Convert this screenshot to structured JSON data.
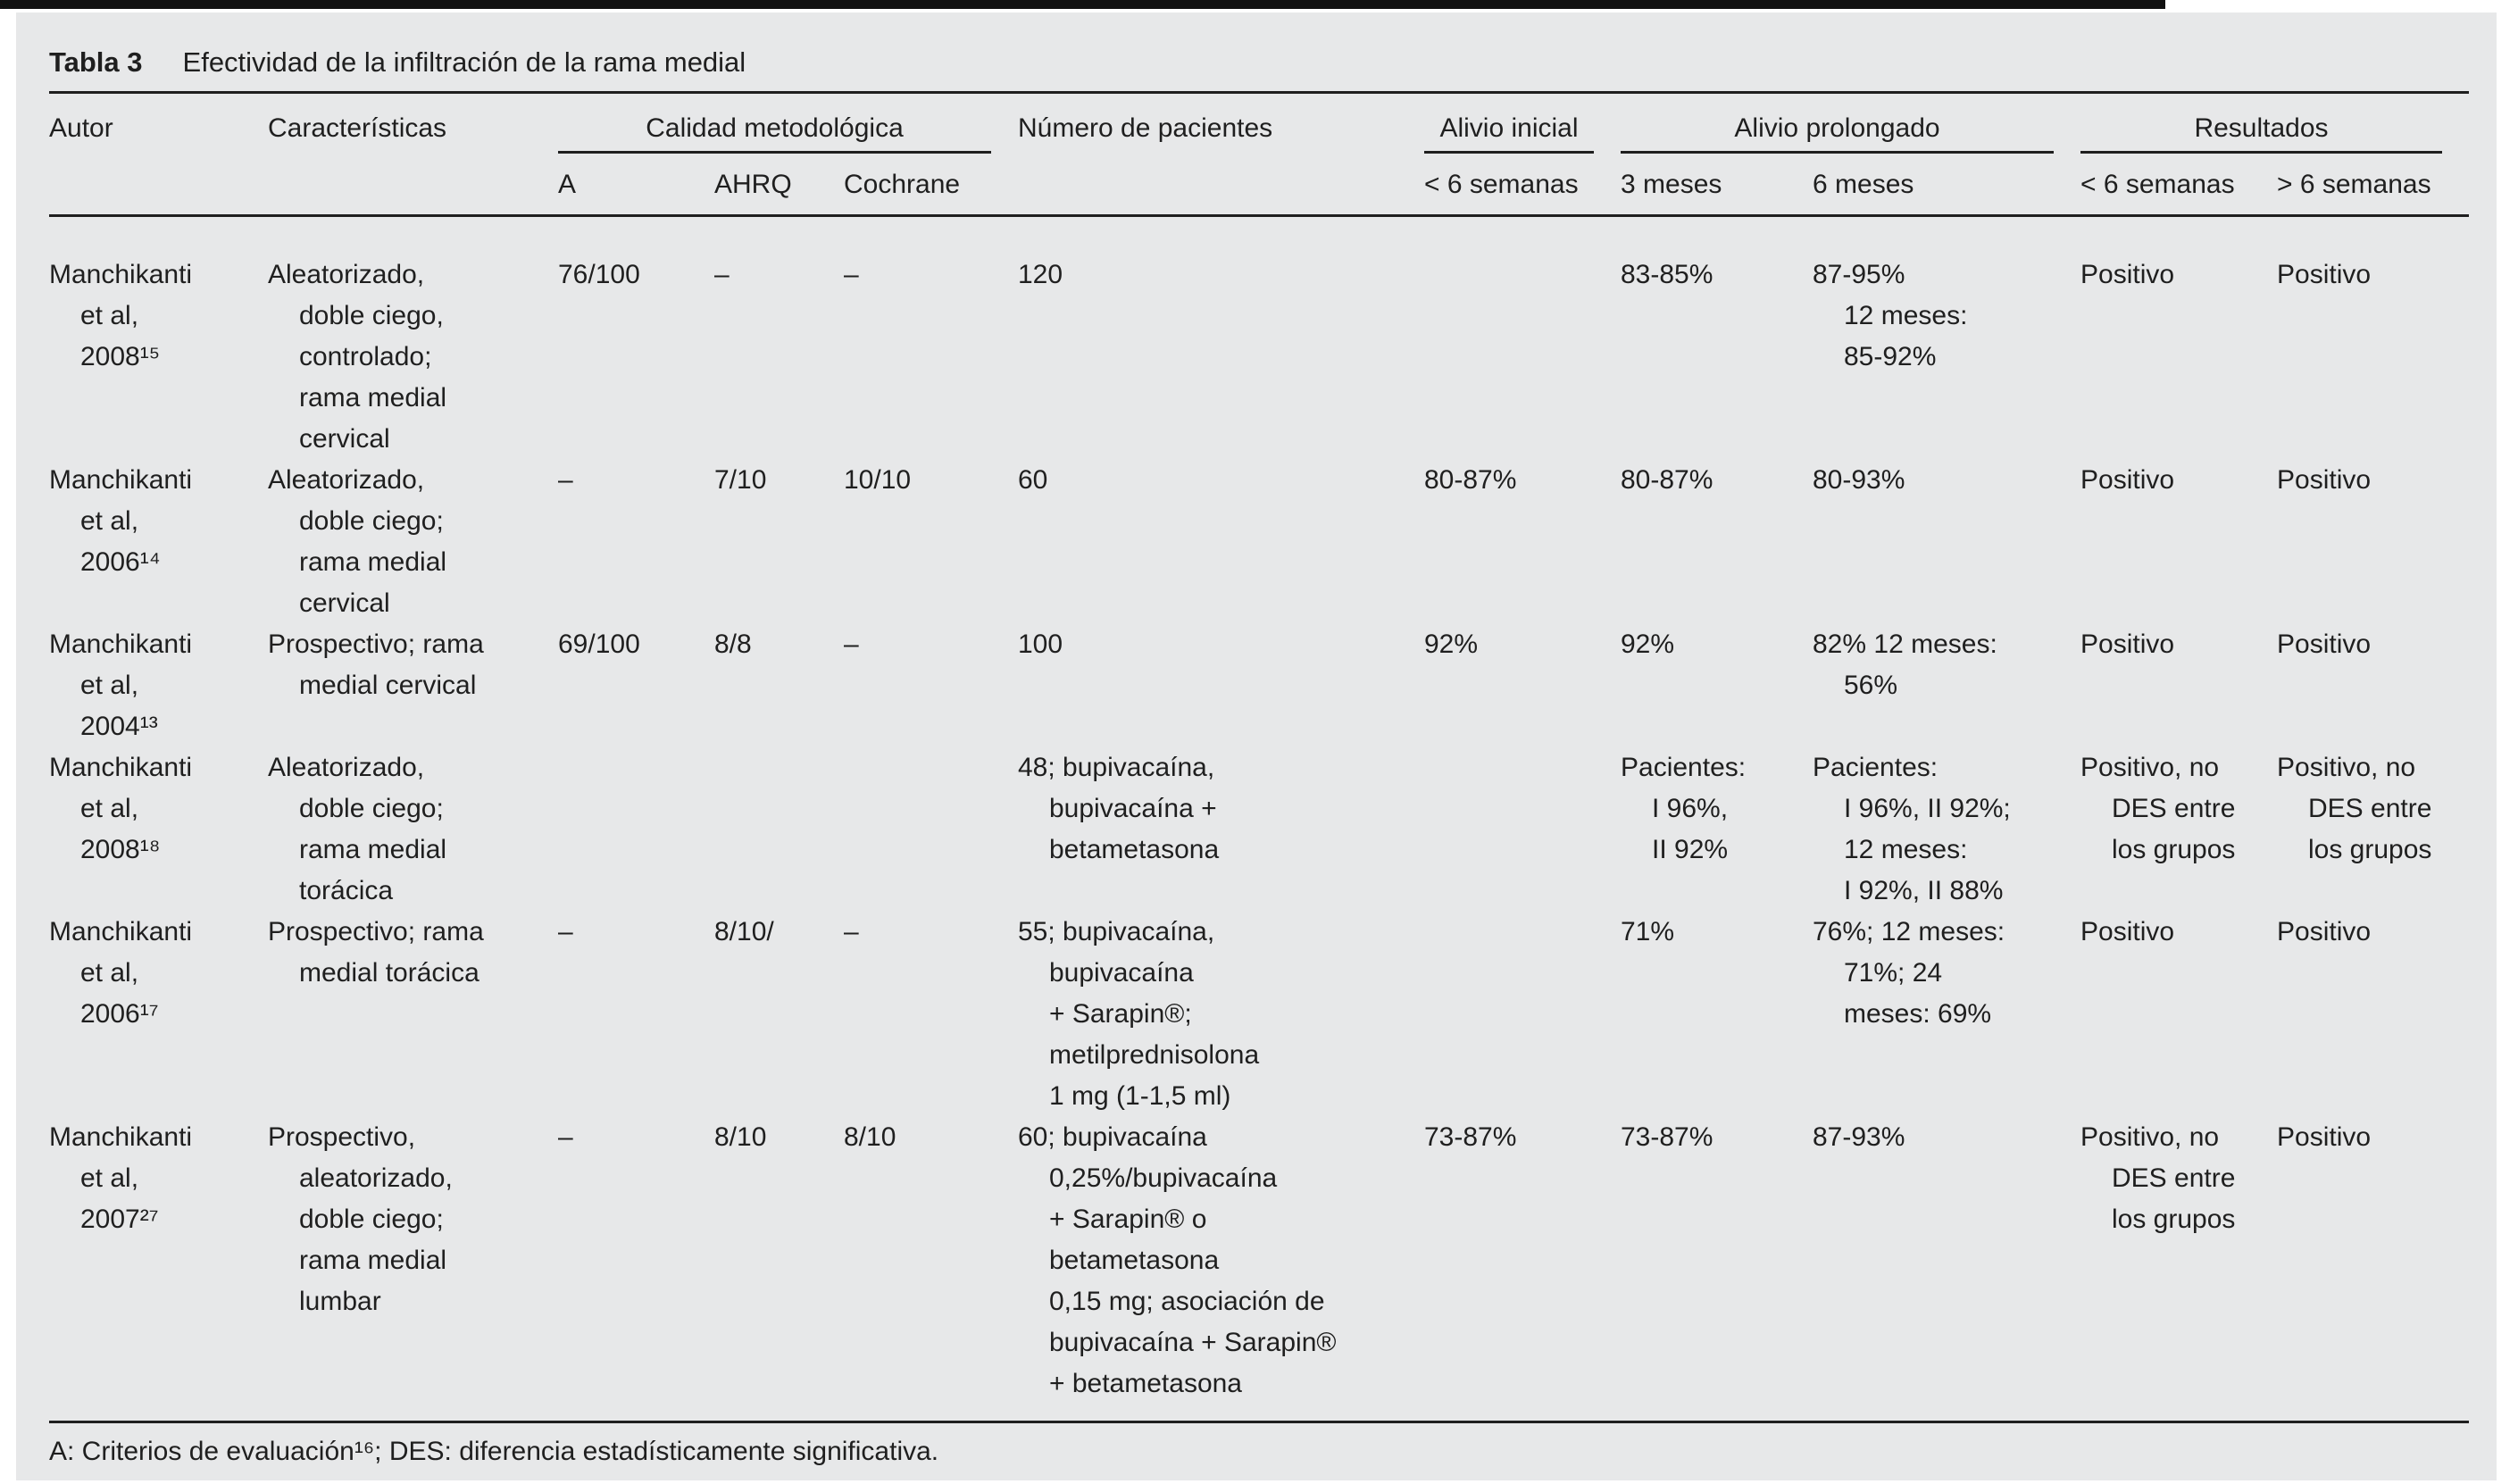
{
  "table": {
    "title_label": "Tabla 3",
    "title_text": "Efectividad de la infiltración de la rama medial",
    "headers": {
      "autor": "Autor",
      "caracteristicas": "Características",
      "pacientes": "Número de pacientes"
    },
    "groups": {
      "calidad": "Calidad metodológica",
      "alivio_inicial": "Alivio inicial",
      "alivio_prolongado": "Alivio prolongado",
      "resultados": "Resultados"
    },
    "subheaders": {
      "a": "A",
      "ahrq": "AHRQ",
      "cochrane": "Cochrane",
      "inicial_lt6sem": "< 6 semanas",
      "m3": "3 meses",
      "m6": "6 meses",
      "res_lt6sem": "< 6 semanas",
      "res_gt6sem": "> 6 semanas"
    },
    "rows": [
      {
        "autor": [
          "Manchikanti",
          "et al,",
          "2008¹⁵"
        ],
        "caracteristicas": [
          "Aleatorizado,",
          "doble ciego,",
          "controlado;",
          "rama medial",
          "cervical"
        ],
        "a": "76/100",
        "ahrq": "–",
        "cochrane": "–",
        "pacientes": [
          "120"
        ],
        "alivio_inicial": "",
        "alivio_3m": [
          "83-85%"
        ],
        "alivio_6m": [
          "87-95%",
          "12 meses:",
          "85-92%"
        ],
        "resultado_lt6s": [
          "Positivo"
        ],
        "resultado_gt6s": [
          "Positivo"
        ]
      },
      {
        "autor": [
          "Manchikanti",
          "et al,",
          "2006¹⁴"
        ],
        "caracteristicas": [
          "Aleatorizado,",
          "doble ciego;",
          "rama medial",
          "cervical"
        ],
        "a": "–",
        "ahrq": "7/10",
        "cochrane": "10/10",
        "pacientes": [
          "60"
        ],
        "alivio_inicial": "80-87%",
        "alivio_3m": [
          "80-87%"
        ],
        "alivio_6m": [
          "80-93%"
        ],
        "resultado_lt6s": [
          "Positivo"
        ],
        "resultado_gt6s": [
          "Positivo"
        ]
      },
      {
        "autor": [
          "Manchikanti",
          "et al,",
          "2004¹³"
        ],
        "caracteristicas": [
          "Prospectivo; rama",
          "medial cervical"
        ],
        "a": "69/100",
        "ahrq": "8/8",
        "cochrane": "–",
        "pacientes": [
          "100"
        ],
        "alivio_inicial": "92%",
        "alivio_3m": [
          "92%"
        ],
        "alivio_6m": [
          "82% 12 meses:",
          "56%"
        ],
        "resultado_lt6s": [
          "Positivo"
        ],
        "resultado_gt6s": [
          "Positivo"
        ]
      },
      {
        "autor": [
          "Manchikanti",
          "et al,",
          "2008¹⁸"
        ],
        "caracteristicas": [
          "Aleatorizado,",
          "doble ciego;",
          "rama medial",
          "torácica"
        ],
        "a": "",
        "ahrq": "",
        "cochrane": "",
        "pacientes": [
          "48; bupivacaína,",
          "bupivacaína +",
          "betametasona"
        ],
        "alivio_inicial": "",
        "alivio_3m": [
          "Pacientes:",
          "I 96%,",
          "II 92%"
        ],
        "alivio_6m": [
          "Pacientes:",
          "I 96%, II 92%;",
          "12 meses:",
          "I 92%, II 88%"
        ],
        "resultado_lt6s": [
          "Positivo, no",
          "DES entre",
          "los grupos"
        ],
        "resultado_gt6s": [
          "Positivo, no",
          "DES entre",
          "los grupos"
        ]
      },
      {
        "autor": [
          "Manchikanti",
          "et al,",
          "2006¹⁷"
        ],
        "caracteristicas": [
          "Prospectivo; rama",
          "medial torácica"
        ],
        "a": "–",
        "ahrq": "8/10/",
        "cochrane": "–",
        "pacientes": [
          "55; bupivacaína,",
          "bupivacaína",
          "+ Sarapin®;",
          "metilprednisolona",
          "1 mg (1-1,5 ml)"
        ],
        "alivio_inicial": "",
        "alivio_3m": [
          "71%"
        ],
        "alivio_6m": [
          "76%; 12 meses:",
          "71%; 24",
          "meses: 69%"
        ],
        "resultado_lt6s": [
          "Positivo"
        ],
        "resultado_gt6s": [
          "Positivo"
        ]
      },
      {
        "autor": [
          "Manchikanti",
          "et al,",
          "2007²⁷"
        ],
        "caracteristicas": [
          "Prospectivo,",
          "aleatorizado,",
          "doble ciego;",
          "rama medial",
          "lumbar"
        ],
        "a": "–",
        "ahrq": "8/10",
        "cochrane": "8/10",
        "pacientes": [
          "60; bupivacaína",
          "0,25%/bupivacaína",
          "+ Sarapin® o",
          "betametasona",
          "0,15 mg; asociación de",
          "bupivacaína + Sarapin®",
          "+ betametasona"
        ],
        "alivio_inicial": "73-87%",
        "alivio_3m": [
          "73-87%"
        ],
        "alivio_6m": [
          "87-93%"
        ],
        "resultado_lt6s": [
          "Positivo, no",
          "DES entre",
          "los grupos"
        ],
        "resultado_gt6s": [
          "Positivo"
        ]
      }
    ],
    "footnote": "A: Criterios de evaluación¹⁶; DES: diferencia estadísticamente significativa."
  }
}
